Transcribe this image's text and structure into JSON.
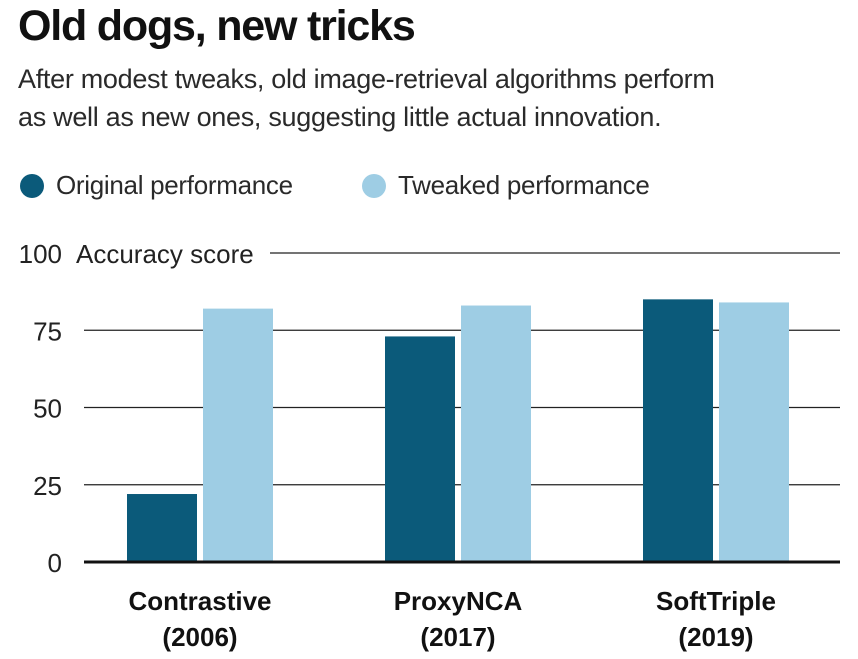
{
  "header": {
    "title": "Old dogs, new tricks",
    "subtitle_line1": "After modest tweaks, old image-retrieval algorithms perform",
    "subtitle_line2": "as well as new ones, suggesting little actual innovation."
  },
  "legend": {
    "items": [
      {
        "label": "Original performance",
        "color": "#0b5a7a"
      },
      {
        "label": "Tweaked performance",
        "color": "#9ecde4"
      }
    ]
  },
  "colors": {
    "original": "#0b5a7a",
    "tweaked": "#9ecde4",
    "axis": "#111111",
    "grid": "#222222"
  },
  "chart_data": {
    "type": "bar",
    "title": "Old dogs, new tricks",
    "subtitle": "After modest tweaks, old image-retrieval algorithms perform as well as new ones, suggesting little actual innovation.",
    "ylabel": "Accuracy score",
    "xlabel": "",
    "ylim": [
      0,
      100
    ],
    "yticks": [
      0,
      25,
      50,
      75,
      100
    ],
    "grid": true,
    "legend_position": "top-left",
    "categories": [
      {
        "name": "Contrastive",
        "year": "(2006)"
      },
      {
        "name": "ProxyNCA",
        "year": "(2017)"
      },
      {
        "name": "SoftTriple",
        "year": "(2019)"
      }
    ],
    "series": [
      {
        "name": "Original performance",
        "values": [
          22,
          73,
          85
        ]
      },
      {
        "name": "Tweaked performance",
        "values": [
          82,
          83,
          84
        ]
      }
    ]
  }
}
